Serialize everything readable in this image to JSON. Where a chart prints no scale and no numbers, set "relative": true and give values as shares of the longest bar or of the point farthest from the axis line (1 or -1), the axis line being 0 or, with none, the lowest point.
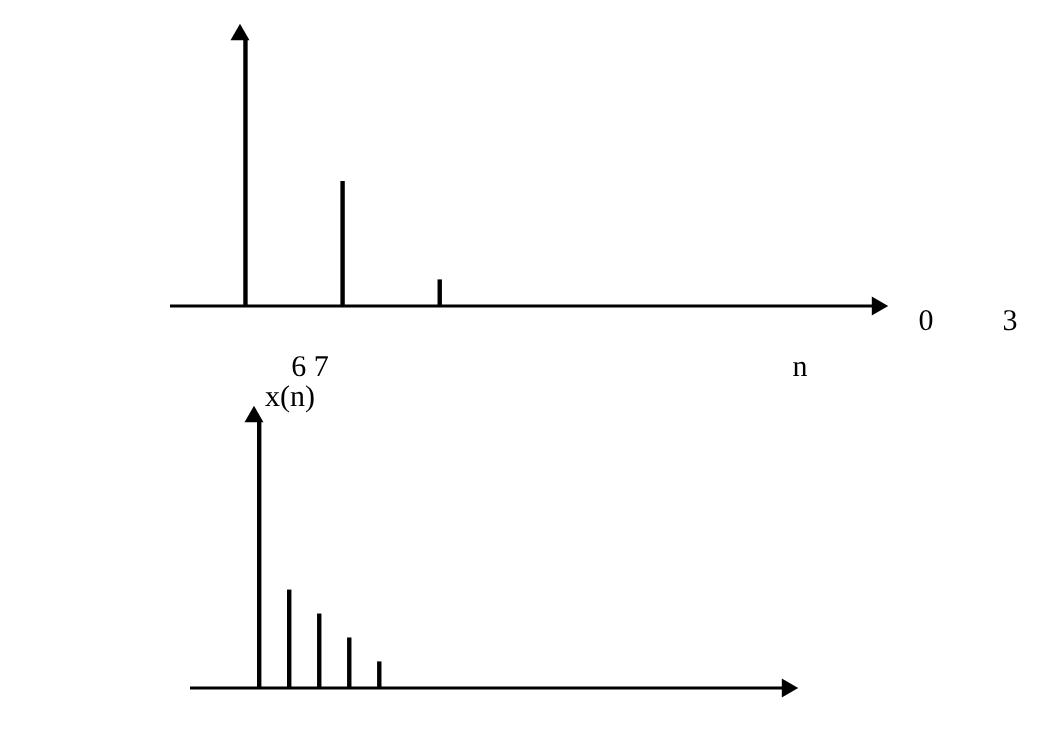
{
  "chart_data": [
    {
      "type": "bar",
      "relative": true,
      "categories": [
        null,
        null,
        null
      ],
      "values": [
        1,
        0.47,
        0.1
      ],
      "color": "#000000",
      "annotations": [
        "6  7",
        "n",
        "0",
        "3"
      ]
    },
    {
      "type": "bar",
      "relative": true,
      "ylabel": "x(n)",
      "categories": [
        null,
        null,
        null,
        null,
        null
      ],
      "values": [
        1,
        0.37,
        0.28,
        0.19,
        0.1
      ],
      "color": "#000000"
    }
  ]
}
